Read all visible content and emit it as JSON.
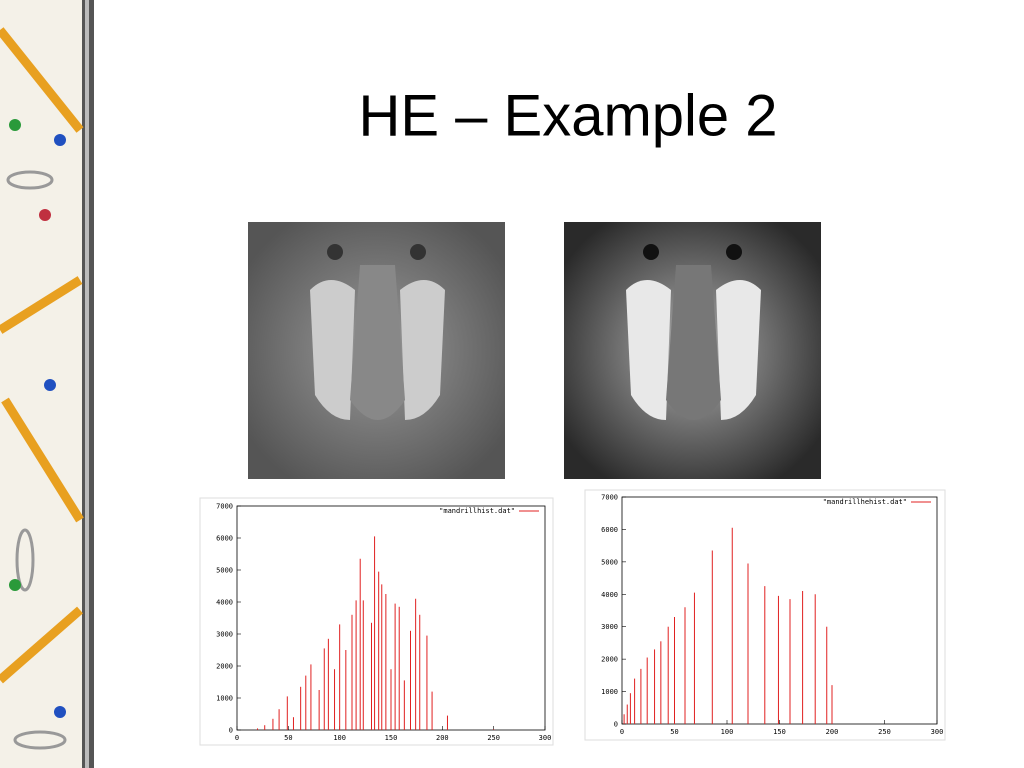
{
  "slide": {
    "title": "HE – Example 2"
  },
  "chart_data": [
    {
      "type": "bar",
      "series": [
        {
          "name": "\"mandrillhist.dat\"",
          "color": "#e02020",
          "x": [
            20,
            27,
            35,
            41,
            49,
            55,
            62,
            67,
            72,
            80,
            85,
            89,
            95,
            100,
            106,
            112,
            116,
            120,
            123,
            131,
            134,
            138,
            141,
            145,
            150,
            154,
            158,
            163,
            169,
            174,
            178,
            185,
            190,
            205,
            250
          ],
          "values": [
            50,
            150,
            350,
            650,
            1050,
            400,
            1350,
            1700,
            2050,
            1250,
            2550,
            2850,
            1900,
            3300,
            2500,
            3600,
            4050,
            5350,
            4050,
            3350,
            6050,
            4950,
            4550,
            4250,
            1900,
            3950,
            3850,
            1550,
            3100,
            4100,
            3600,
            2950,
            1200,
            450,
            20
          ]
        }
      ],
      "xlim": [
        0,
        300
      ],
      "xticks": [
        0,
        50,
        100,
        150,
        200,
        250,
        300
      ],
      "ylim": [
        0,
        7000
      ],
      "yticks": [
        0,
        1000,
        2000,
        3000,
        4000,
        5000,
        6000,
        7000
      ]
    },
    {
      "type": "bar",
      "series": [
        {
          "name": "\"mandrillhehist.dat\"",
          "color": "#e02020",
          "x": [
            2,
            5,
            8,
            12,
            18,
            24,
            31,
            37,
            44,
            50,
            60,
            69,
            86,
            105,
            120,
            136,
            149,
            160,
            172,
            184,
            195,
            200
          ],
          "values": [
            300,
            600,
            950,
            1400,
            1700,
            2050,
            2300,
            2550,
            3000,
            3300,
            3600,
            4050,
            5350,
            6050,
            4950,
            4250,
            3950,
            3850,
            4100,
            4000,
            3000,
            1200
          ]
        }
      ],
      "xlim": [
        0,
        300
      ],
      "xticks": [
        0,
        50,
        100,
        150,
        200,
        250,
        300
      ],
      "ylim": [
        0,
        7000
      ],
      "yticks": [
        0,
        1000,
        2000,
        3000,
        4000,
        5000,
        6000,
        7000
      ]
    }
  ]
}
